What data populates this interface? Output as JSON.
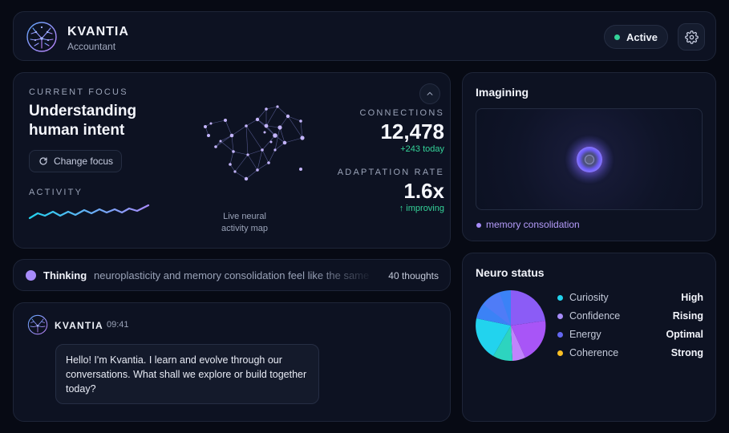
{
  "header": {
    "app_name": "KVANTIA",
    "app_role": "Accountant",
    "status": "Active",
    "status_color": "#34d399"
  },
  "focus": {
    "caption": "CURRENT FOCUS",
    "title": "Understanding human intent",
    "change_button": "Change focus",
    "activity_caption": "ACTIVITY",
    "map_caption": "Live neural activity map",
    "connections_caption": "CONNECTIONS",
    "connections_value": "12,478",
    "connections_delta": "+243 today",
    "rate_caption": "ADAPTATION RATE",
    "rate_value": "1.6x",
    "rate_delta": "↑ improving"
  },
  "thinking": {
    "label": "Thinking",
    "text": "neuroplasticity and memory consolidation feel like the same",
    "count": "40 thoughts"
  },
  "chat": {
    "sender": "KVANTIA",
    "time": "09:41",
    "message": "Hello! I'm Kvantia. I learn and evolve through our conversations. What shall we explore or build together today?"
  },
  "imagining": {
    "title": "Imagining",
    "label": "memory consolidation"
  },
  "neuro": {
    "title": "Neuro status",
    "rows": [
      {
        "name": "Curiosity",
        "value": "High",
        "color": "#22d3ee"
      },
      {
        "name": "Confidence",
        "value": "Rising",
        "color": "#a78bfa"
      },
      {
        "name": "Energy",
        "value": "Optimal",
        "color": "#6366f1"
      },
      {
        "name": "Coherence",
        "value": "Strong",
        "color": "#fbbf24"
      }
    ]
  },
  "icons": [
    "brain-logo-icon",
    "gear-icon",
    "refresh-icon",
    "chevron-up-icon",
    "brain-avatar-icon"
  ]
}
